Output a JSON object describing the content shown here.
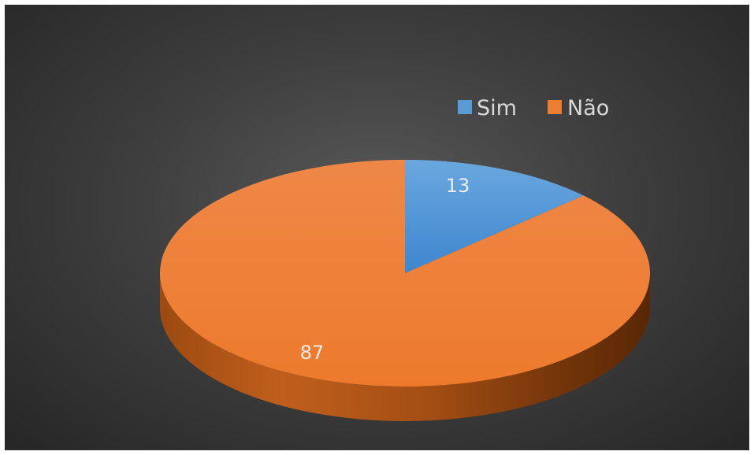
{
  "chart_data": {
    "type": "pie",
    "categories": [
      "Sim",
      "Não"
    ],
    "values": [
      13,
      87
    ],
    "colors": [
      "#5b9bd5",
      "#ed7d31"
    ],
    "data_labels": [
      "13",
      "87"
    ],
    "legend": {
      "placement": "top-right",
      "entries": [
        "Sim",
        "Não"
      ]
    },
    "background": "#404040",
    "style": "3d"
  }
}
